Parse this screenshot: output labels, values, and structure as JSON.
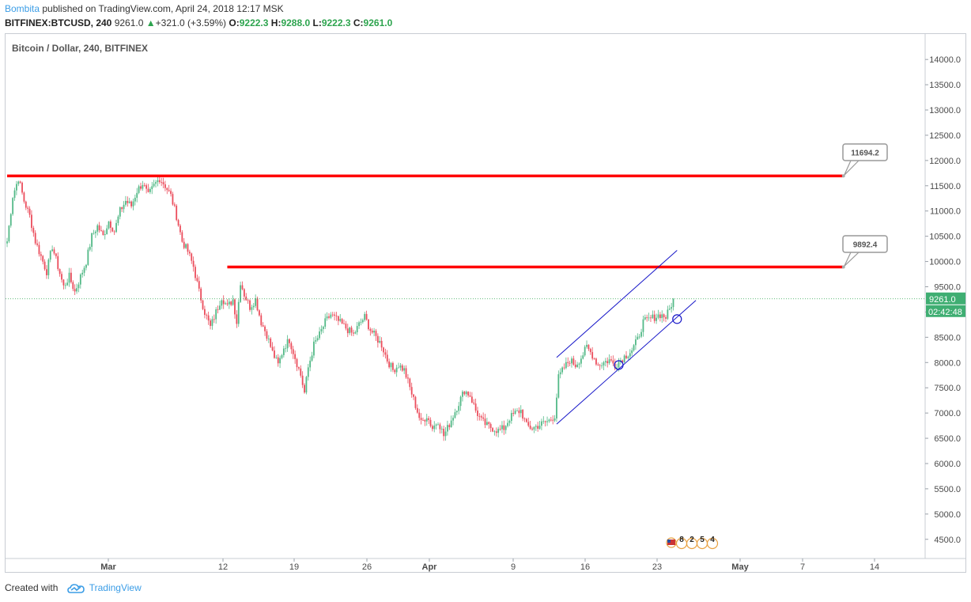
{
  "header": {
    "author": "Bombita",
    "published": " published on TradingView.com, April 24, 2018 12:17 MSK",
    "symbol": "BITFINEX:BTCUSD, 240",
    "last": "9261.0",
    "change": "+321.0 (+3.59%)",
    "o_label": "O:",
    "o_value": "9222.3",
    "h_label": "H:",
    "h_value": "9288.0",
    "l_label": "L:",
    "l_value": "9222.3",
    "c_label": "C:",
    "c_value": "9261.0"
  },
  "footer": {
    "created_with": "Created with",
    "brand": "TradingView"
  },
  "colors": {
    "up": "#53b987",
    "down": "#eb4d5c",
    "resistance": "#ff0000",
    "channel": "#1414c8",
    "price_line": "#2da44e",
    "axis_text": "#4a4a4a"
  },
  "chart_data": {
    "type": "candlestick",
    "title": "Bitcoin / Dollar, 240, BITFINEX",
    "ylim": [
      4100,
      14400
    ],
    "y_ticks": [
      4500,
      5000,
      5500,
      6000,
      6500,
      7000,
      7500,
      8000,
      8500,
      9000,
      9500,
      10000,
      10500,
      11000,
      11500,
      12000,
      12500,
      13000,
      13500,
      14000
    ],
    "x_labels": [
      "Mar",
      "12",
      "19",
      "26",
      "Apr",
      "9",
      "16",
      "23",
      "May",
      "7",
      "14"
    ],
    "current_price_label": "9261.0",
    "countdown_label": "02:42:48",
    "close_path": [
      [
        0,
        10400
      ],
      [
        3,
        11300
      ],
      [
        6,
        11650
      ],
      [
        9,
        11200
      ],
      [
        12,
        10900
      ],
      [
        15,
        10400
      ],
      [
        18,
        10100
      ],
      [
        21,
        9800
      ],
      [
        24,
        10300
      ],
      [
        27,
        9900
      ],
      [
        30,
        9500
      ],
      [
        33,
        9700
      ],
      [
        36,
        9400
      ],
      [
        39,
        9700
      ],
      [
        42,
        10000
      ],
      [
        45,
        10500
      ],
      [
        48,
        10700
      ],
      [
        51,
        10500
      ],
      [
        54,
        10800
      ],
      [
        57,
        10600
      ],
      [
        60,
        11000
      ],
      [
        63,
        11200
      ],
      [
        66,
        11100
      ],
      [
        69,
        11400
      ],
      [
        72,
        11550
      ],
      [
        75,
        11300
      ],
      [
        78,
        11500
      ],
      [
        81,
        11650
      ],
      [
        84,
        11500
      ],
      [
        87,
        11300
      ],
      [
        90,
        10900
      ],
      [
        93,
        10400
      ],
      [
        96,
        10200
      ],
      [
        99,
        9900
      ],
      [
        102,
        9400
      ],
      [
        105,
        9000
      ],
      [
        108,
        8700
      ],
      [
        111,
        9000
      ],
      [
        114,
        9300
      ],
      [
        117,
        9100
      ],
      [
        120,
        9250
      ],
      [
        122,
        8800
      ],
      [
        124,
        9600
      ],
      [
        126,
        9350
      ],
      [
        129,
        9100
      ],
      [
        132,
        9250
      ],
      [
        135,
        8800
      ],
      [
        138,
        8550
      ],
      [
        141,
        8200
      ],
      [
        144,
        7950
      ],
      [
        147,
        8300
      ],
      [
        150,
        8450
      ],
      [
        153,
        8100
      ],
      [
        156,
        7750
      ],
      [
        158,
        7400
      ],
      [
        160,
        7900
      ],
      [
        163,
        8350
      ],
      [
        166,
        8550
      ],
      [
        169,
        8800
      ],
      [
        172,
        8950
      ],
      [
        175,
        8850
      ],
      [
        178,
        8750
      ],
      [
        181,
        8650
      ],
      [
        184,
        8550
      ],
      [
        187,
        8750
      ],
      [
        190,
        8900
      ],
      [
        193,
        8650
      ],
      [
        196,
        8500
      ],
      [
        199,
        8350
      ],
      [
        202,
        8050
      ],
      [
        205,
        7850
      ],
      [
        208,
        7950
      ],
      [
        211,
        7850
      ],
      [
        214,
        7500
      ],
      [
        217,
        7150
      ],
      [
        220,
        6800
      ],
      [
        223,
        6950
      ],
      [
        226,
        6700
      ],
      [
        229,
        6850
      ],
      [
        232,
        6550
      ],
      [
        234,
        6700
      ],
      [
        237,
        6950
      ],
      [
        240,
        7200
      ],
      [
        243,
        7450
      ],
      [
        246,
        7350
      ],
      [
        249,
        7050
      ],
      [
        252,
        6850
      ],
      [
        255,
        6750
      ],
      [
        258,
        6700
      ],
      [
        261,
        6650
      ],
      [
        264,
        6700
      ],
      [
        267,
        6900
      ],
      [
        270,
        7000
      ],
      [
        273,
        7050
      ],
      [
        276,
        6750
      ],
      [
        279,
        6700
      ],
      [
        282,
        6750
      ],
      [
        285,
        6800
      ],
      [
        288,
        6850
      ],
      [
        291,
        6950
      ],
      [
        293,
        7700
      ],
      [
        296,
        7900
      ],
      [
        299,
        8050
      ],
      [
        302,
        7950
      ],
      [
        305,
        8100
      ],
      [
        308,
        8300
      ],
      [
        311,
        8150
      ],
      [
        314,
        7950
      ],
      [
        317,
        8000
      ],
      [
        320,
        8050
      ],
      [
        323,
        7950
      ],
      [
        326,
        8050
      ],
      [
        329,
        8150
      ],
      [
        332,
        8250
      ],
      [
        335,
        8450
      ],
      [
        338,
        8800
      ],
      [
        341,
        8850
      ],
      [
        344,
        8900
      ],
      [
        347,
        8950
      ],
      [
        350,
        8900
      ],
      [
        352,
        9050
      ],
      [
        354,
        9261
      ]
    ],
    "resistance_lines": [
      {
        "label": "11694.2",
        "price": 11694.2,
        "start_bar": 0,
        "end_bar": 444
      },
      {
        "label": "9892.4",
        "price": 9892.4,
        "start_bar": 117,
        "end_bar": 444
      }
    ],
    "channel": {
      "lower": [
        [
          292,
          6780
        ],
        [
          366,
          9230
        ]
      ],
      "upper": [
        [
          292,
          8100
        ],
        [
          356,
          10220
        ]
      ]
    },
    "circle_markers": [
      [
        325,
        7950
      ],
      [
        356,
        8860
      ]
    ],
    "events_badge": [
      "8",
      "2",
      "5",
      "4"
    ]
  }
}
